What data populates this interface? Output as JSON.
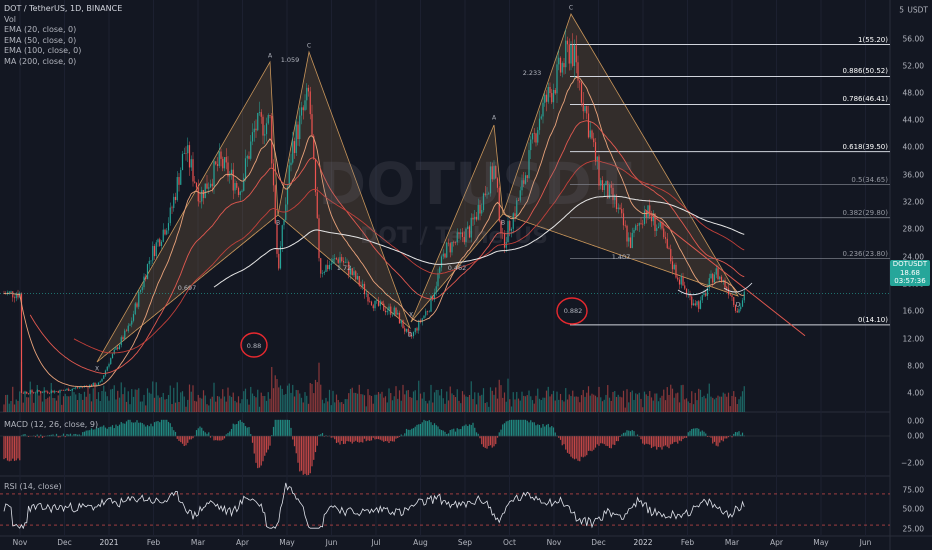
{
  "legend": {
    "title": "DOT / TetherUS, 1D, BINANCE",
    "lines": [
      "Vol",
      "EMA (20, close, 0)",
      "EMA (50, close, 0)",
      "EMA (100, close, 0)",
      "MA (200, close, 0)"
    ]
  },
  "watermark": {
    "symbol": "DOTUSDT",
    "name": "DOT / TetherUS"
  },
  "price_axis": {
    "unit": "USDT",
    "ticks": [
      "56.00",
      "52.00",
      "48.00",
      "44.00",
      "40.00",
      "36.00",
      "32.00",
      "28.00",
      "24.00",
      "20.00",
      "16.00",
      "12.00",
      "8.00",
      "4.00",
      "0.00"
    ],
    "last_price_badge": {
      "symbol": "DOTUSDT",
      "price": "18.68",
      "countdown": "03:57:36"
    },
    "ticks_volume": [
      "0.00"
    ],
    "dot_label": "5"
  },
  "macd": {
    "label": "MACD (12, 26, close, 9)",
    "ticks": [
      "0.00",
      "−2.00"
    ]
  },
  "rsi": {
    "label": "RSI (14, close)",
    "ticks": [
      "75.00",
      "50.00",
      "25.00"
    ]
  },
  "time_axis": [
    "Nov",
    "Dec",
    "2021",
    "Feb",
    "Mar",
    "Apr",
    "May",
    "Jun",
    "Jul",
    "Aug",
    "Sep",
    "Oct",
    "Nov",
    "Dec",
    "2022",
    "Feb",
    "Mar",
    "Apr",
    "May",
    "Jun"
  ],
  "fib_levels": [
    {
      "label": "1(55.20)",
      "value": 55.2,
      "bold": true
    },
    {
      "label": "0.886(50.52)",
      "value": 50.52,
      "bold": true
    },
    {
      "label": "0.786(46.41)",
      "value": 46.41,
      "bold": true
    },
    {
      "label": "0.618(39.50)",
      "value": 39.5,
      "bold": true
    },
    {
      "label": "0.5(34.65)",
      "value": 34.65,
      "bold": false
    },
    {
      "label": "0.382(29.80)",
      "value": 29.8,
      "bold": false
    },
    {
      "label": "0.236(23.80)",
      "value": 23.8,
      "bold": false
    },
    {
      "label": "0(14.10)",
      "value": 14.1,
      "bold": true
    }
  ],
  "ratios": [
    "0.697",
    "1.059",
    "1.72",
    "0.462",
    "2.233",
    "1.407",
    "0.88",
    "0.882"
  ],
  "pattern_points": [
    "X",
    "A",
    "B",
    "C",
    "D"
  ],
  "colors": {
    "up": "#26a69a",
    "down": "#ef5350",
    "ema20": "#e8a27a",
    "ema50": "#e0584f",
    "ema100": "#c2403a",
    "ma200": "#e6e6e6",
    "pattern": "#c8955a",
    "circle": "#e8292f"
  },
  "chart_data": {
    "type": "line",
    "title": "DOT / TetherUS, 1D, BINANCE",
    "xlabel": "",
    "ylabel": "USDT",
    "ylim": [
      0,
      57
    ],
    "x": [
      "2020-11-01",
      "2020-12-01",
      "2021-01-01",
      "2021-02-01",
      "2021-03-01",
      "2021-04-01",
      "2021-05-01",
      "2021-06-01",
      "2021-07-01",
      "2021-08-01",
      "2021-09-01",
      "2021-10-01",
      "2021-11-01",
      "2021-12-01",
      "2022-01-01",
      "2022-02-01",
      "2022-03-01"
    ],
    "series": [
      {
        "name": "DOT / TetherUS",
        "values": [
          4.2,
          4.7,
          9.0,
          24.0,
          33.0,
          39.0,
          36.0,
          17.0,
          13.0,
          17.0,
          34.0,
          29.0,
          52.0,
          29.0,
          27.0,
          20.0,
          18.68
        ]
      }
    ],
    "harmonic_patterns": [
      {
        "points": {
          "X": "2020-12-24",
          "A": "2021-04-15",
          "B": "2021-04-23",
          "C": "2021-05-15",
          "D": "2021-07-20"
        },
        "ratios": [
          "0.697",
          "1.059",
          "1.72",
          "0.88"
        ]
      },
      {
        "points": {
          "X": "2021-07-20",
          "A": "2021-09-14",
          "B": "2021-09-25",
          "C": "2021-11-04",
          "D": "2022-02-24"
        },
        "ratios": [
          "0.462",
          "2.233",
          "1.407",
          "0.882"
        ]
      }
    ],
    "fibonacci": [
      1,
      0.886,
      0.786,
      0.618,
      0.5,
      0.382,
      0.236,
      0
    ],
    "last_price": 18.68,
    "macd_range": [
      -3,
      1.2
    ],
    "rsi_guides": [
      70,
      30
    ]
  }
}
